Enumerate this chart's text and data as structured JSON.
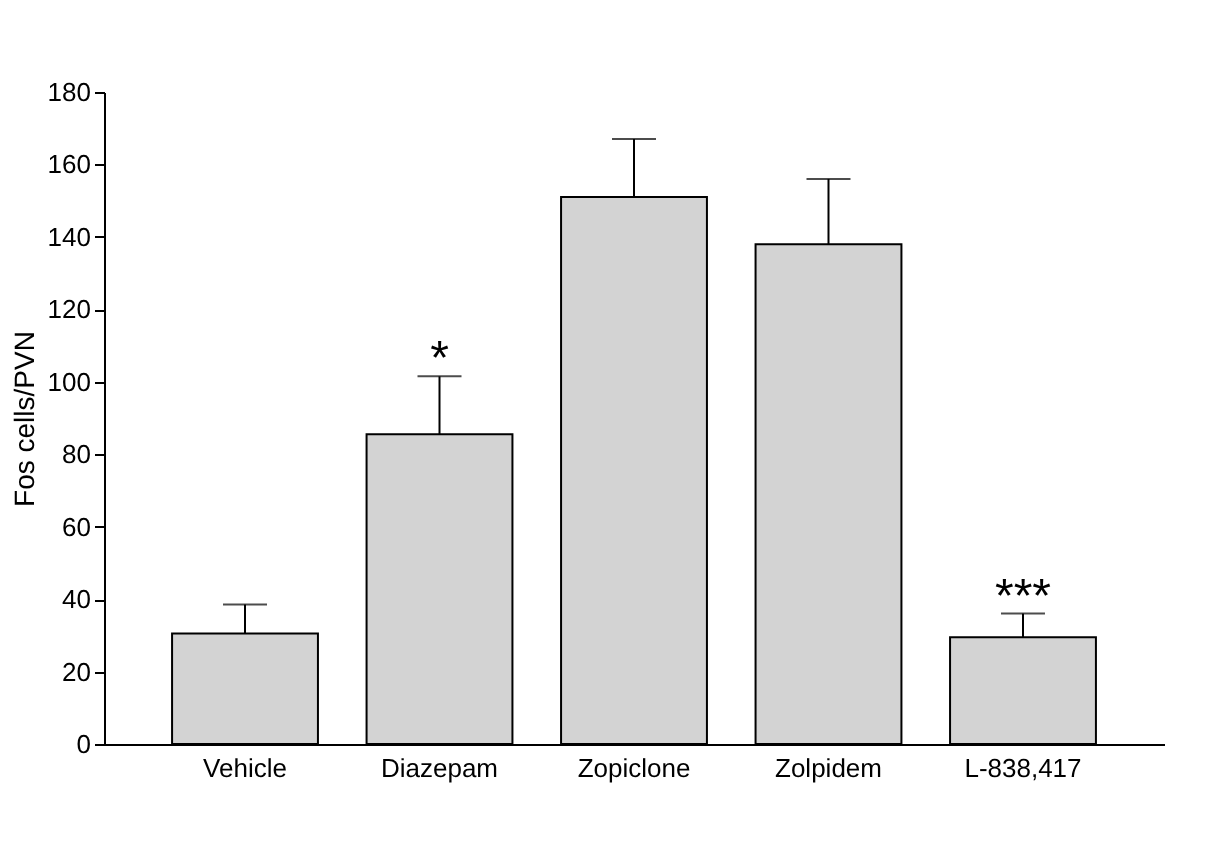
{
  "chart_data": {
    "type": "bar",
    "ylabel": "Fos cells/PVN",
    "categories": [
      "Vehicle",
      "Diazepam",
      "Zopiclone",
      "Zolpidem",
      "L-838,417"
    ],
    "values": [
      30.5,
      85.5,
      151,
      138,
      29.5
    ],
    "errors": [
      [
        30.5,
        38.5
      ],
      [
        85.5,
        101.5
      ],
      [
        151,
        167
      ],
      [
        138,
        156
      ],
      [
        29.5,
        36
      ]
    ],
    "color": "#d3d3d3",
    "ylim": [
      0,
      180
    ],
    "yticks": [
      0,
      20,
      40,
      60,
      80,
      100,
      120,
      140,
      160,
      180
    ],
    "grid": false,
    "annotations": [
      {
        "text": "*",
        "x": "Diazepam",
        "y": 101.5
      },
      {
        "text": "***",
        "x": "L-838,417",
        "y": 36
      }
    ]
  }
}
